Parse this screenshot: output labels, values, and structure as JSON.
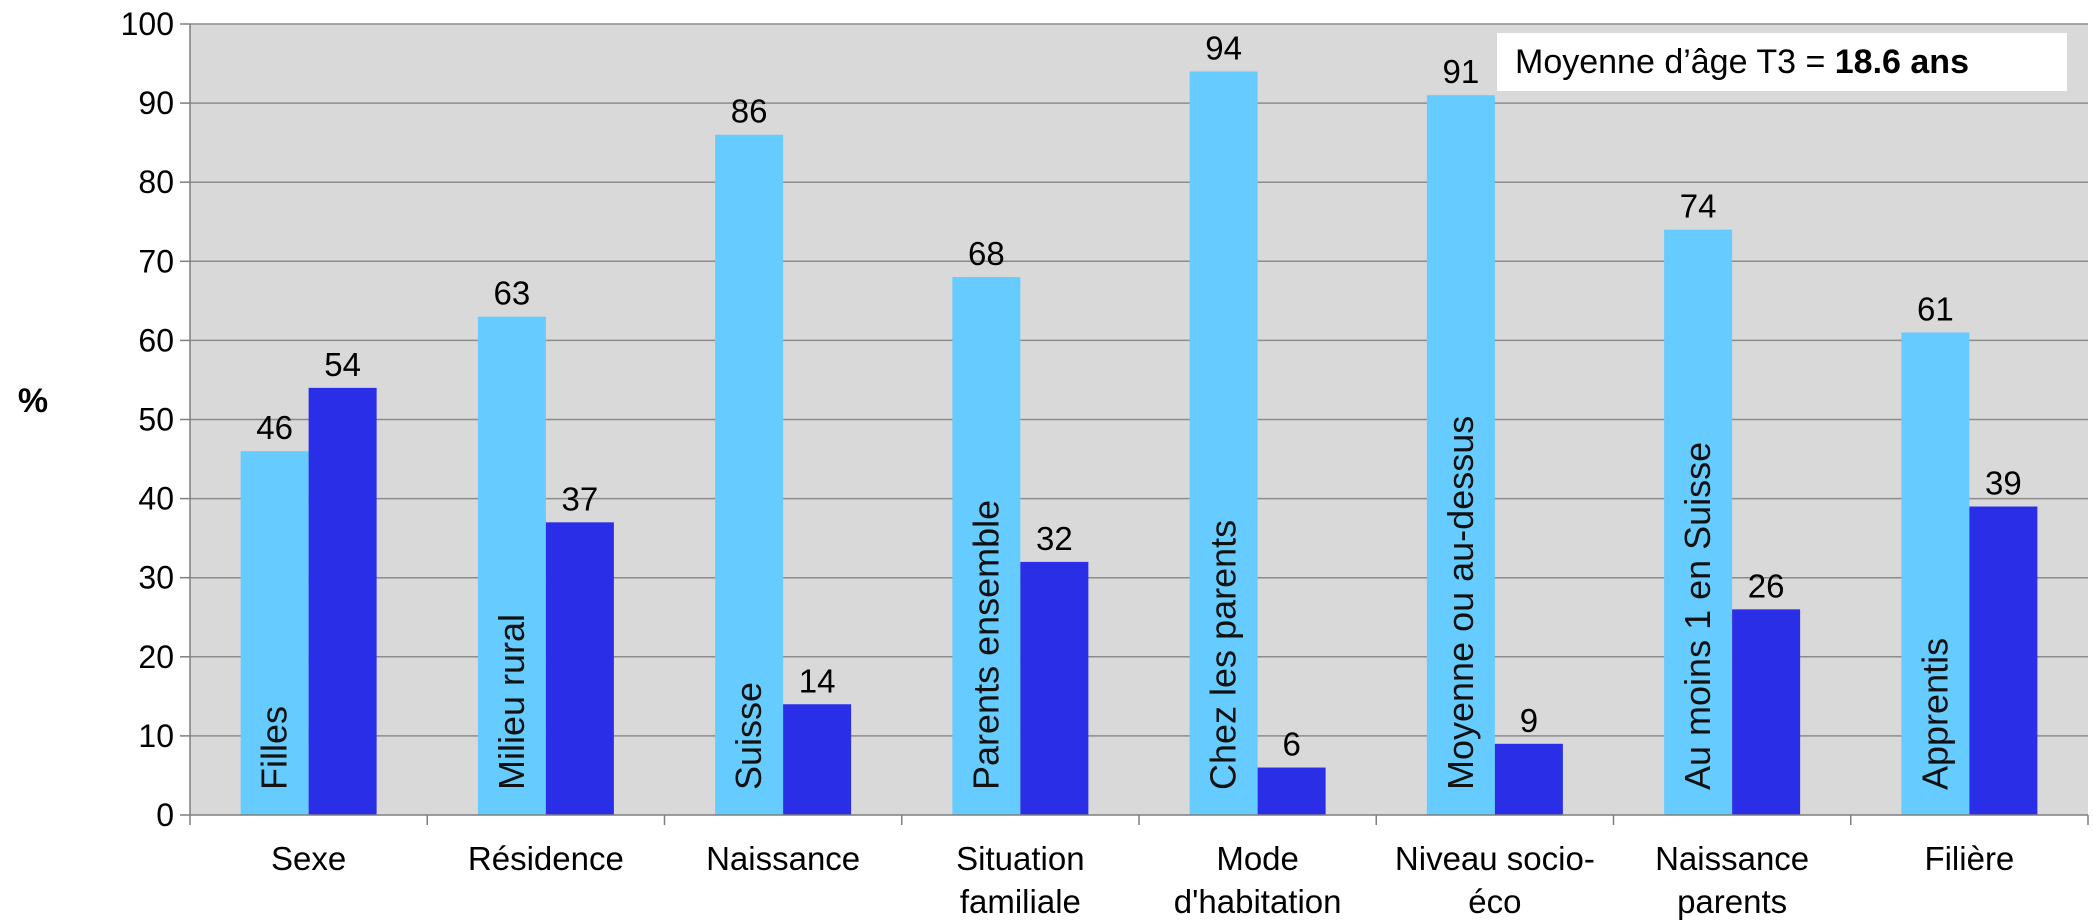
{
  "chart_data": {
    "type": "bar",
    "ylabel": "%",
    "ylim": [
      0,
      100
    ],
    "yticks": [
      "0",
      "10",
      "20",
      "30",
      "40",
      "50",
      "60",
      "70",
      "80",
      "90",
      "100"
    ],
    "grid": true,
    "categories": [
      [
        "Sexe"
      ],
      [
        "Résidence"
      ],
      [
        "Naissance"
      ],
      [
        "Situation",
        "familiale"
      ],
      [
        "Mode",
        "d'habitation"
      ],
      [
        "Niveau socio-",
        "éco"
      ],
      [
        "Naissance",
        "parents"
      ],
      [
        "Filière"
      ]
    ],
    "series": [
      {
        "color": "#66ccff",
        "values": [
          46,
          63,
          86,
          68,
          94,
          91,
          74,
          61
        ],
        "in_bar_labels": [
          "Filles",
          "Milieu rural",
          "Suisse",
          "Parents ensemble",
          "Chez les parents",
          "Moyenne ou au-dessus",
          "Au moins 1 en Suisse",
          "Apprentis"
        ]
      },
      {
        "color": "#2a2ee6",
        "values": [
          54,
          37,
          14,
          32,
          6,
          9,
          26,
          39
        ]
      }
    ],
    "annotation": {
      "prefix": "Moyenne d’âge T3 = ",
      "value": "18.6 ans"
    },
    "plot_background": "#d9d9d9"
  }
}
